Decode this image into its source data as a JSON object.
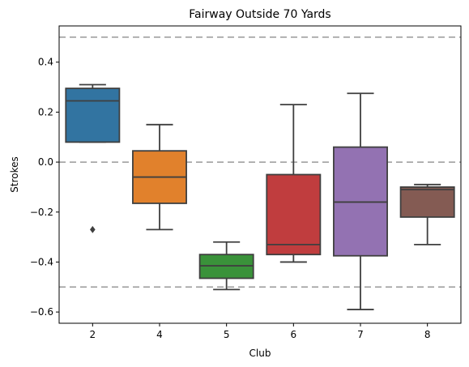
{
  "chart_data": {
    "type": "box",
    "title": "Fairway Outside 70 Yards",
    "xlabel": "Club",
    "ylabel": "Strokes",
    "ylim": [
      -0.645,
      0.545
    ],
    "yticks": [
      -0.6,
      -0.4,
      -0.2,
      0.0,
      0.2,
      0.4
    ],
    "ytick_labels": [
      "−0.6",
      "−0.4",
      "−0.2",
      "0.0",
      "0.2",
      "0.4"
    ],
    "grid": false,
    "reference_lines": [
      0.5,
      0.0,
      -0.5
    ],
    "reference_line_color": "#999999",
    "categories": [
      "2",
      "4",
      "5",
      "6",
      "7",
      "8"
    ],
    "boxes": [
      {
        "category": "2",
        "color": "#3274a1",
        "whisker_low": 0.08,
        "q1": 0.08,
        "median": 0.245,
        "q3": 0.295,
        "whisker_high": 0.31,
        "outliers": [
          -0.27
        ]
      },
      {
        "category": "4",
        "color": "#e1812c",
        "whisker_low": -0.27,
        "q1": -0.165,
        "median": -0.06,
        "q3": 0.045,
        "whisker_high": 0.15,
        "outliers": []
      },
      {
        "category": "5",
        "color": "#3a923a",
        "whisker_low": -0.51,
        "q1": -0.465,
        "median": -0.415,
        "q3": -0.37,
        "whisker_high": -0.32,
        "outliers": []
      },
      {
        "category": "6",
        "color": "#c03d3e",
        "whisker_low": -0.4,
        "q1": -0.37,
        "median": -0.33,
        "q3": -0.05,
        "whisker_high": 0.23,
        "outliers": []
      },
      {
        "category": "7",
        "color": "#9372b2",
        "whisker_low": -0.59,
        "q1": -0.375,
        "median": -0.16,
        "q3": 0.06,
        "whisker_high": 0.275,
        "outliers": []
      },
      {
        "category": "8",
        "color": "#845b53",
        "whisker_low": -0.33,
        "q1": -0.22,
        "median": -0.11,
        "q3": -0.1,
        "whisker_high": -0.09,
        "outliers": []
      }
    ]
  }
}
